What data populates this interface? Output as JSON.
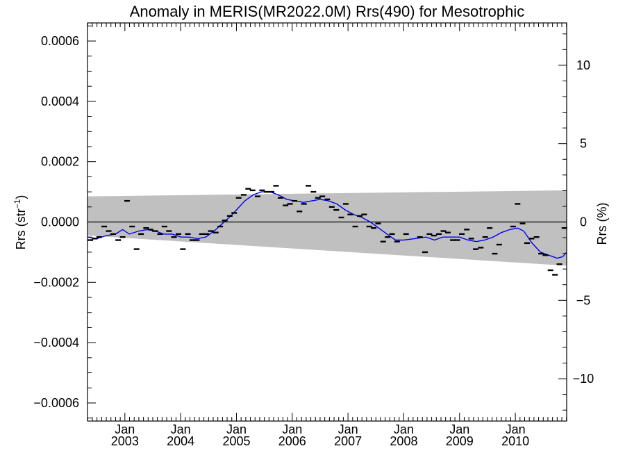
{
  "chart_data": {
    "type": "scatter",
    "title": "Anomaly in MERIS(MR2022.0M) Rrs(490) for Mesotrophic",
    "ylabel_left_base": "Rrs (str",
    "ylabel_left_sup": "−1",
    "ylabel_left_close": ")",
    "ylabel_right": "Rrs (%)",
    "xlim": [
      2002.33,
      2010.92
    ],
    "ylim_left": [
      -0.00066,
      0.00066
    ],
    "ylim_right": [
      -12.7,
      12.7
    ],
    "grid": false,
    "left_ticks": [
      {
        "value": 0.0006,
        "label": "0.0006"
      },
      {
        "value": 0.0004,
        "label": "0.0004"
      },
      {
        "value": 0.0002,
        "label": "0.0002"
      },
      {
        "value": 0.0,
        "label": "0.0000"
      },
      {
        "value": -0.0002,
        "label": "−0.0002"
      },
      {
        "value": -0.0004,
        "label": "−0.0004"
      },
      {
        "value": -0.0006,
        "label": "−0.0006"
      }
    ],
    "right_ticks": [
      {
        "value": 10,
        "label": "10"
      },
      {
        "value": 5,
        "label": "5"
      },
      {
        "value": 0,
        "label": "0"
      },
      {
        "value": -5,
        "label": "−5"
      },
      {
        "value": -10,
        "label": "−10"
      }
    ],
    "x_ticks": [
      {
        "value": 2003.0,
        "month": "Jan",
        "year": "2003"
      },
      {
        "value": 2004.0,
        "month": "Jan",
        "year": "2004"
      },
      {
        "value": 2005.0,
        "month": "Jan",
        "year": "2005"
      },
      {
        "value": 2006.0,
        "month": "Jan",
        "year": "2006"
      },
      {
        "value": 2007.0,
        "month": "Jan",
        "year": "2007"
      },
      {
        "value": 2008.0,
        "month": "Jan",
        "year": "2008"
      },
      {
        "value": 2009.0,
        "month": "Jan",
        "year": "2009"
      },
      {
        "value": 2010.0,
        "month": "Jan",
        "year": "2010"
      }
    ],
    "band": {
      "color": "#c0c0c0",
      "upper": [
        [
          2002.33,
          8.5e-05
        ],
        [
          2010.92,
          0.000105
        ]
      ],
      "lower": [
        [
          2002.33,
          -4.5e-05
        ],
        [
          2010.92,
          -0.000145
        ]
      ]
    },
    "zero_line_color": "#000000",
    "points_color": "#000000",
    "smooth_color": "#0000ee",
    "points": [
      [
        2002.38,
        -6e-05
      ],
      [
        2002.46,
        -5.5e-05
      ],
      [
        2002.54,
        -5e-05
      ],
      [
        2002.63,
        -1.5e-05
      ],
      [
        2002.71,
        -3e-05
      ],
      [
        2002.79,
        -4e-05
      ],
      [
        2002.88,
        -6e-05
      ],
      [
        2002.96,
        -5e-05
      ],
      [
        2003.04,
        7e-05
      ],
      [
        2003.13,
        -1.5e-05
      ],
      [
        2003.21,
        -9e-05
      ],
      [
        2003.29,
        -4e-05
      ],
      [
        2003.38,
        -2e-05
      ],
      [
        2003.46,
        -2.5e-05
      ],
      [
        2003.54,
        -3e-05
      ],
      [
        2003.63,
        -4e-05
      ],
      [
        2003.71,
        -1.5e-05
      ],
      [
        2003.79,
        -3e-05
      ],
      [
        2003.88,
        -5e-05
      ],
      [
        2003.96,
        -4e-05
      ],
      [
        2004.04,
        -9e-05
      ],
      [
        2004.13,
        -4e-05
      ],
      [
        2004.21,
        -6e-05
      ],
      [
        2004.29,
        -6e-05
      ],
      [
        2004.38,
        -4e-05
      ],
      [
        2004.46,
        -4e-05
      ],
      [
        2004.54,
        -3e-05
      ],
      [
        2004.63,
        -3.5e-05
      ],
      [
        2004.71,
        -1.5e-05
      ],
      [
        2004.79,
        5e-06
      ],
      [
        2004.88,
        2e-05
      ],
      [
        2004.96,
        3e-05
      ],
      [
        2005.04,
        8e-05
      ],
      [
        2005.13,
        9e-05
      ],
      [
        2005.21,
        0.00011
      ],
      [
        2005.29,
        0.000105
      ],
      [
        2005.38,
        8.5e-05
      ],
      [
        2005.46,
        0.000105
      ],
      [
        2005.54,
        0.0001
      ],
      [
        2005.63,
        0.0001
      ],
      [
        2005.71,
        0.00012
      ],
      [
        2005.79,
        8e-05
      ],
      [
        2005.88,
        5.5e-05
      ],
      [
        2005.96,
        6e-05
      ],
      [
        2006.04,
        7e-05
      ],
      [
        2006.13,
        3.5e-05
      ],
      [
        2006.21,
        6e-05
      ],
      [
        2006.29,
        0.00012
      ],
      [
        2006.38,
        0.0001
      ],
      [
        2006.46,
        8e-05
      ],
      [
        2006.54,
        8.5e-05
      ],
      [
        2006.63,
        7.5e-05
      ],
      [
        2006.71,
        5e-05
      ],
      [
        2006.79,
        4e-05
      ],
      [
        2006.88,
        1.5e-05
      ],
      [
        2006.96,
        6e-05
      ],
      [
        2007.04,
        2.5e-05
      ],
      [
        2007.13,
        -1.5e-05
      ],
      [
        2007.21,
        2e-05
      ],
      [
        2007.29,
        2.5e-05
      ],
      [
        2007.38,
        -1.5e-05
      ],
      [
        2007.46,
        -2e-05
      ],
      [
        2007.54,
        -5e-06
      ],
      [
        2007.63,
        -6.5e-05
      ],
      [
        2007.71,
        -5e-05
      ],
      [
        2007.79,
        -4e-05
      ],
      [
        2007.88,
        -6.5e-05
      ],
      [
        2008.04,
        -4e-05
      ],
      [
        2008.29,
        -5e-05
      ],
      [
        2008.38,
        -0.0001
      ],
      [
        2008.46,
        -4e-05
      ],
      [
        2008.54,
        -4.5e-05
      ],
      [
        2008.63,
        -4e-05
      ],
      [
        2008.71,
        -3e-05
      ],
      [
        2008.79,
        -3.5e-05
      ],
      [
        2008.88,
        -6e-05
      ],
      [
        2008.96,
        -6e-05
      ],
      [
        2009.04,
        -4e-05
      ],
      [
        2009.13,
        -2.5e-05
      ],
      [
        2009.21,
        -5.5e-05
      ],
      [
        2009.29,
        -9e-05
      ],
      [
        2009.38,
        -8.5e-05
      ],
      [
        2009.46,
        -5e-05
      ],
      [
        2009.54,
        -2e-05
      ],
      [
        2009.63,
        -0.000105
      ],
      [
        2009.71,
        -7.5e-05
      ],
      [
        2009.96,
        -1.5e-05
      ],
      [
        2010.04,
        6e-05
      ],
      [
        2010.13,
        -5e-06
      ],
      [
        2010.21,
        -7e-05
      ],
      [
        2010.29,
        -5.5e-05
      ],
      [
        2010.38,
        -5e-05
      ],
      [
        2010.46,
        -0.000105
      ],
      [
        2010.54,
        -0.00011
      ],
      [
        2010.63,
        -0.00016
      ],
      [
        2010.71,
        -0.000175
      ],
      [
        2010.79,
        -0.00014
      ],
      [
        2010.88,
        -2e-05
      ]
    ],
    "smooth": [
      [
        2002.33,
        -5e-05
      ],
      [
        2002.5,
        -5.5e-05
      ],
      [
        2002.67,
        -4.5e-05
      ],
      [
        2002.83,
        -4e-05
      ],
      [
        2002.96,
        -2.5e-05
      ],
      [
        2003.08,
        -4e-05
      ],
      [
        2003.25,
        -3e-05
      ],
      [
        2003.4,
        -2.5e-05
      ],
      [
        2003.55,
        -3e-05
      ],
      [
        2003.7,
        -4e-05
      ],
      [
        2003.85,
        -4e-05
      ],
      [
        2004.0,
        -5e-05
      ],
      [
        2004.15,
        -5e-05
      ],
      [
        2004.3,
        -5.5e-05
      ],
      [
        2004.45,
        -5e-05
      ],
      [
        2004.6,
        -3e-05
      ],
      [
        2004.75,
        -5e-06
      ],
      [
        2004.9,
        2e-05
      ],
      [
        2005.0,
        4e-05
      ],
      [
        2005.15,
        7e-05
      ],
      [
        2005.3,
        9e-05
      ],
      [
        2005.45,
        0.0001
      ],
      [
        2005.6,
        0.0001
      ],
      [
        2005.75,
        9e-05
      ],
      [
        2005.9,
        7.5e-05
      ],
      [
        2006.05,
        7e-05
      ],
      [
        2006.2,
        6.5e-05
      ],
      [
        2006.35,
        7e-05
      ],
      [
        2006.5,
        7.5e-05
      ],
      [
        2006.65,
        7e-05
      ],
      [
        2006.8,
        6e-05
      ],
      [
        2006.95,
        4e-05
      ],
      [
        2007.1,
        2.5e-05
      ],
      [
        2007.25,
        1.5e-05
      ],
      [
        2007.4,
        0.0
      ],
      [
        2007.55,
        -2e-05
      ],
      [
        2007.7,
        -4e-05
      ],
      [
        2007.85,
        -6e-05
      ],
      [
        2008.0,
        -6e-05
      ],
      [
        2008.2,
        -5.5e-05
      ],
      [
        2008.4,
        -5e-05
      ],
      [
        2008.55,
        -6e-05
      ],
      [
        2008.7,
        -5e-05
      ],
      [
        2008.85,
        -5e-05
      ],
      [
        2009.0,
        -5e-05
      ],
      [
        2009.15,
        -6e-05
      ],
      [
        2009.3,
        -6.5e-05
      ],
      [
        2009.45,
        -6e-05
      ],
      [
        2009.6,
        -5e-05
      ],
      [
        2009.75,
        -3.5e-05
      ],
      [
        2009.9,
        -2.5e-05
      ],
      [
        2010.04,
        -2e-05
      ],
      [
        2010.15,
        -3e-05
      ],
      [
        2010.3,
        -7e-05
      ],
      [
        2010.45,
        -0.0001
      ],
      [
        2010.6,
        -0.00011
      ],
      [
        2010.75,
        -0.00012
      ],
      [
        2010.85,
        -0.000115
      ],
      [
        2010.92,
        -0.0001
      ]
    ]
  }
}
